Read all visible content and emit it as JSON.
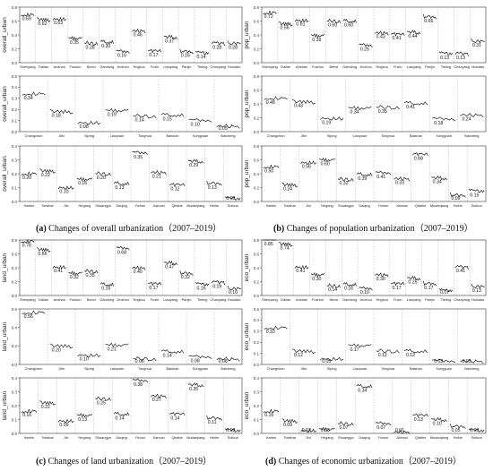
{
  "captions": {
    "a": {
      "letter": "(a)",
      "text": " Changes of overall urbanization（2007–2019）"
    },
    "b": {
      "letter": "(b)",
      "text": " Changes of population urbanization（2007–2019）"
    },
    "c": {
      "letter": "(c)",
      "text": " Changes of land urbanization（2007–2019）"
    },
    "d": {
      "letter": "(d)",
      "text": " Changes of economic urbanization（2007–2019）"
    }
  },
  "chart_data": [
    {
      "id": "a1",
      "type": "line",
      "ylabel": "overall_urban",
      "ylim": [
        0.0,
        0.8
      ],
      "yticks": [
        0.0,
        0.2,
        0.4,
        0.6,
        0.8
      ],
      "categories": [
        "Shenyang",
        "Dalian",
        "Anshan",
        "Fushun",
        "Benxi",
        "Dandong",
        "Jinzhou",
        "Yingkou",
        "Fuxin",
        "Liaoyang",
        "Panjin",
        "Tieling",
        "Chaoyang",
        "Huludao"
      ],
      "values": [
        0.69,
        0.62,
        0.63,
        0.35,
        0.28,
        0.3,
        0.16,
        0.46,
        0.17,
        0.37,
        0.16,
        0.14,
        0.28,
        0.28
      ]
    },
    {
      "id": "b1",
      "type": "line",
      "ylabel": "pop_urban",
      "ylim": [
        0.0,
        0.8
      ],
      "yticks": [
        0.0,
        0.2,
        0.4,
        0.6,
        0.8
      ],
      "categories": [
        "Shenyang",
        "Dalian",
        "Anshan",
        "Fushun",
        "Benxi",
        "Dandong",
        "Jinzhou",
        "Yingkou",
        "Fuxin",
        "Liaoyang",
        "Panjin",
        "Tieling",
        "Chaoyang",
        "Huludao"
      ],
      "values": [
        0.72,
        0.56,
        0.61,
        0.39,
        0.6,
        0.6,
        0.25,
        0.43,
        0.41,
        0.44,
        0.66,
        0.13,
        0.13,
        0.31
      ]
    },
    {
      "id": "a2",
      "type": "line",
      "ylabel": "overall_urban",
      "ylim": [
        0.0,
        0.5
      ],
      "yticks": [
        0.0,
        0.1,
        0.2,
        0.3,
        0.4,
        0.5
      ],
      "categories": [
        "Changchun",
        "Jilin",
        "Siping",
        "Liaoyuan",
        "Tonghua",
        "Baishan",
        "Songyuan",
        "Baicheng"
      ],
      "values": [
        0.34,
        0.18,
        0.08,
        0.19,
        0.14,
        0.15,
        0.1,
        0.05
      ]
    },
    {
      "id": "b2",
      "type": "line",
      "ylabel": "pop_urban",
      "ylim": [
        0.0,
        0.8
      ],
      "yticks": [
        0.0,
        0.2,
        0.4,
        0.6,
        0.8
      ],
      "categories": [
        "Changchun",
        "Jilin",
        "Siping",
        "Liaoyuan",
        "Tonghua",
        "Baishan",
        "Songyuan",
        "Baicheng"
      ],
      "values": [
        0.48,
        0.43,
        0.19,
        0.34,
        0.35,
        0.41,
        0.18,
        0.24
      ]
    },
    {
      "id": "a3",
      "type": "line",
      "ylabel": "overall_urban",
      "ylim": [
        0.0,
        0.4
      ],
      "yticks": [
        0.0,
        0.1,
        0.2,
        0.3,
        0.4
      ],
      "categories": [
        "Harbin",
        "Totsihar",
        "Jixi",
        "Hegang",
        "Shuangya",
        "Daqing",
        "Yichun",
        "Jiamusi",
        "Qitaihe",
        "Mudanjiang",
        "Heihe",
        "Suihua"
      ],
      "values": [
        0.2,
        0.22,
        0.1,
        0.16,
        0.2,
        0.13,
        0.35,
        0.21,
        0.12,
        0.29,
        0.13,
        0.02
      ]
    },
    {
      "id": "b3",
      "type": "line",
      "ylabel": "pop_urban",
      "ylim": [
        0.0,
        0.8
      ],
      "yticks": [
        0.0,
        0.2,
        0.4,
        0.6,
        0.8
      ],
      "categories": [
        "Harbin",
        "Totsihar",
        "Jixi",
        "Hegang",
        "Shuangya",
        "Daqing",
        "Yichun",
        "Jiamusi",
        "Qitaihe",
        "Mudanjiang",
        "Heihe",
        "Suihua"
      ],
      "values": [
        0.5,
        0.24,
        0.56,
        0.6,
        0.32,
        0.39,
        0.41,
        0.33,
        0.68,
        0.34,
        0.09,
        0.15
      ]
    },
    {
      "id": "c1",
      "type": "line",
      "ylabel": "land_urban",
      "ylim": [
        0.0,
        0.8
      ],
      "yticks": [
        0.0,
        0.2,
        0.4,
        0.6,
        0.8
      ],
      "categories": [
        "Shenyang",
        "Dalian",
        "Anshan",
        "Fushun",
        "Benxi",
        "Dandong",
        "Jinzhou",
        "Yingkou",
        "Fuxin",
        "Liaoyang",
        "Panjin",
        "Tieling",
        "Chaoyang",
        "Huludao"
      ],
      "values": [
        0.78,
        0.66,
        0.41,
        0.32,
        0.35,
        0.16,
        0.68,
        0.4,
        0.17,
        0.47,
        0.32,
        0.16,
        0.19,
        0.1
      ]
    },
    {
      "id": "d1",
      "type": "line",
      "ylabel": "eco_urban",
      "ylim": [
        0.0,
        0.8
      ],
      "yticks": [
        0.0,
        0.2,
        0.4,
        0.6,
        0.8
      ],
      "categories": [
        "Shenyang",
        "Dalian",
        "Anshan",
        "Fushun",
        "Benxi",
        "Dandong",
        "Jinzhou",
        "Yingkou",
        "Fuxin",
        "Liaoyang",
        "Panjin",
        "Tieling",
        "Chaoyang",
        "Huludao"
      ],
      "values": [
        0.85,
        0.74,
        0.41,
        0.3,
        0.14,
        0.16,
        0.1,
        0.3,
        0.17,
        0.25,
        0.17,
        0.07,
        0.41,
        0.13
      ]
    },
    {
      "id": "c2",
      "type": "line",
      "ylabel": "land_urban",
      "ylim": [
        0.0,
        0.6
      ],
      "yticks": [
        0.0,
        0.2,
        0.4,
        0.6
      ],
      "categories": [
        "Changchun",
        "Jilin",
        "Siping",
        "Liaoyuan",
        "Tonghua",
        "Baishan",
        "Songyuan",
        "Baicheng"
      ],
      "values": [
        0.56,
        0.2,
        0.1,
        0.21,
        0.06,
        0.14,
        0.08,
        0.06
      ]
    },
    {
      "id": "d2",
      "type": "line",
      "ylabel": "eco_urban",
      "ylim": [
        0.0,
        0.5
      ],
      "yticks": [
        0.0,
        0.1,
        0.2,
        0.3,
        0.4,
        0.5
      ],
      "categories": [
        "Changchun",
        "Jilin",
        "Siping",
        "Liaoyuan",
        "Tonghua",
        "Baishan",
        "Songyuan",
        "Baicheng"
      ],
      "values": [
        0.33,
        0.12,
        0.05,
        0.17,
        0.12,
        0.12,
        0.03,
        0.03
      ]
    },
    {
      "id": "c3",
      "type": "line",
      "ylabel": "land_urban",
      "ylim": [
        0.0,
        0.4
      ],
      "yticks": [
        0.0,
        0.1,
        0.2,
        0.3,
        0.4
      ],
      "categories": [
        "Harbin",
        "Totsihar",
        "Jixi",
        "Hegang",
        "Shuangya",
        "Daqing",
        "Yichun",
        "Jiamusi",
        "Qitaihe",
        "Mudanjiang",
        "Heihe",
        "Suihua"
      ],
      "values": [
        0.16,
        0.22,
        0.09,
        0.13,
        0.25,
        0.14,
        0.38,
        0.27,
        0.14,
        0.35,
        0.11,
        0.02
      ]
    },
    {
      "id": "d3",
      "type": "line",
      "ylabel": "eco_urban",
      "ylim": [
        0.0,
        0.4
      ],
      "yticks": [
        0.0,
        0.1,
        0.2,
        0.3,
        0.4
      ],
      "categories": [
        "Harbin",
        "Totsihar",
        "Jixi",
        "Hegang",
        "Shuangya",
        "Daqing",
        "Yichun",
        "Jiamusi",
        "Qitaihe",
        "Mudanjiang",
        "Heihe",
        "Suihua"
      ],
      "values": [
        0.16,
        0.09,
        0.02,
        0.03,
        0.07,
        0.34,
        0.07,
        0.01,
        0.13,
        0.1,
        0.05,
        0.02
      ]
    }
  ]
}
